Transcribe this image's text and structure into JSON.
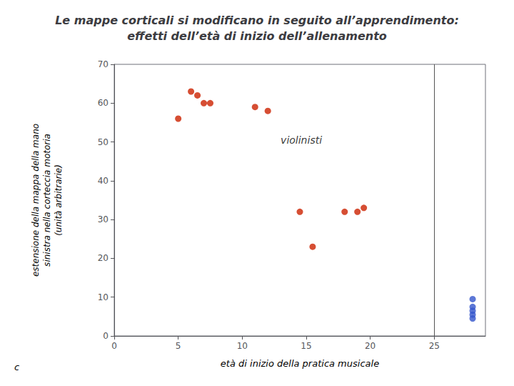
{
  "chart_data": {
    "type": "scatter",
    "title": "Le mappe corticali si modificano in seguito all’apprendimento:\neffetti dell’età di inizio dell’allenamento",
    "xlabel": "età di inizio della pratica musicale",
    "ylabel": "estensione della mappa della mano\nsinistra nella corteccia motoria\n(unità arbitrarie)",
    "series": [
      {
        "color": "#cc2200",
        "x": [
          5.0,
          6.0,
          6.5,
          7.0,
          7.5,
          11.0,
          12.0,
          14.5,
          15.5,
          18.0,
          19.0,
          19.5
        ],
        "values": [
          56,
          63,
          62,
          60,
          60,
          59,
          58,
          32,
          23,
          32,
          32,
          33
        ]
      },
      {
        "color": "#3355cc",
        "x": [
          28.0,
          28.0,
          28.0,
          28.0,
          28.0
        ],
        "values": [
          9.5,
          7.5,
          6.5,
          5.5,
          4.5
        ]
      }
    ],
    "vlines": [
      {
        "x": 25,
        "color": "#555555"
      }
    ],
    "annotations": [
      {
        "text": "violinisti",
        "x": 13,
        "y": 49
      },
      {
        "text": "c"
      }
    ],
    "xlim": [
      0,
      29
    ],
    "ylim": [
      0,
      70
    ],
    "xticks": [
      0,
      5,
      10,
      15,
      20,
      25
    ],
    "yticks": [
      0,
      10,
      20,
      30,
      40,
      50,
      60,
      70
    ],
    "grid": false
  }
}
